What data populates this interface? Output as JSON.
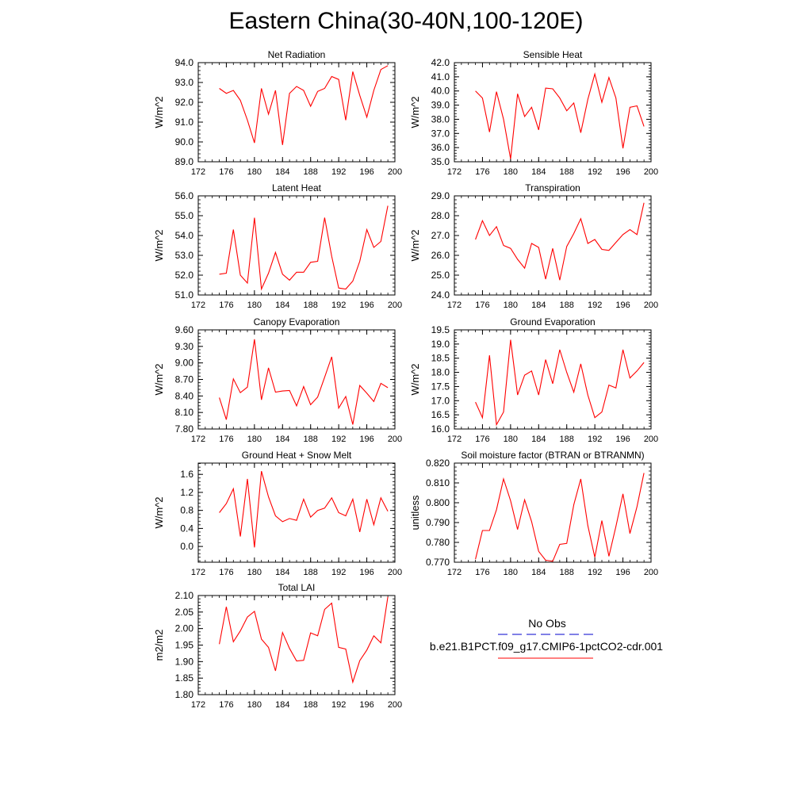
{
  "title": "Eastern China(30-40N,100-120E)",
  "colors": {
    "model": "#ff0000",
    "obs": "#0000cc"
  },
  "legend": {
    "obs_label": "No Obs",
    "model_label": "b.e21.B1PCT.f09_g17.CMIP6-1pctCO2-cdr.001"
  },
  "chart_data": [
    {
      "type": "line",
      "title": "Net Radiation",
      "ylabel": "W/m^2",
      "xlim": [
        172,
        200
      ],
      "xticks": [
        "172",
        "176",
        "180",
        "184",
        "188",
        "192",
        "196",
        "200"
      ],
      "ylim": [
        89.0,
        94.0
      ],
      "yticks": [
        "89.0",
        "90.0",
        "91.0",
        "92.0",
        "93.0",
        "94.0"
      ],
      "x": [
        175,
        176,
        177,
        178,
        179,
        180,
        181,
        182,
        183,
        184,
        185,
        186,
        187,
        188,
        189,
        190,
        191,
        192,
        193,
        194,
        195,
        196,
        197,
        198,
        199
      ],
      "series": [
        {
          "values": [
            92.7,
            92.45,
            92.6,
            92.1,
            91.1,
            89.95,
            92.7,
            91.4,
            92.6,
            89.85,
            92.45,
            92.8,
            92.6,
            91.8,
            92.55,
            92.7,
            93.3,
            93.15,
            91.1,
            93.55,
            92.35,
            91.25,
            92.6,
            93.65,
            93.85
          ]
        }
      ]
    },
    {
      "type": "line",
      "title": "Sensible Heat",
      "ylabel": "W/m^2",
      "xlim": [
        172,
        200
      ],
      "xticks": [
        "172",
        "176",
        "180",
        "184",
        "188",
        "192",
        "196",
        "200"
      ],
      "ylim": [
        35.0,
        42.0
      ],
      "yticks": [
        "35.0",
        "36.0",
        "37.0",
        "38.0",
        "39.0",
        "40.0",
        "41.0",
        "42.0"
      ],
      "x": [
        175,
        176,
        177,
        178,
        179,
        180,
        181,
        182,
        183,
        184,
        185,
        186,
        187,
        188,
        189,
        190,
        191,
        192,
        193,
        194,
        195,
        196,
        197,
        198,
        199
      ],
      "series": [
        {
          "values": [
            40.0,
            39.5,
            37.1,
            39.95,
            38.0,
            35.2,
            39.8,
            38.2,
            38.85,
            37.25,
            40.2,
            40.15,
            39.5,
            38.6,
            39.15,
            37.05,
            39.4,
            41.2,
            39.2,
            40.95,
            39.5,
            35.95,
            38.85,
            38.95,
            37.5
          ]
        }
      ]
    },
    {
      "type": "line",
      "title": "Latent Heat",
      "ylabel": "W/m^2",
      "xlim": [
        172,
        200
      ],
      "xticks": [
        "172",
        "176",
        "180",
        "184",
        "188",
        "192",
        "196",
        "200"
      ],
      "ylim": [
        51.0,
        56.0
      ],
      "yticks": [
        "51.0",
        "52.0",
        "53.0",
        "54.0",
        "55.0",
        "56.0"
      ],
      "x": [
        175,
        176,
        177,
        178,
        179,
        180,
        181,
        182,
        183,
        184,
        185,
        186,
        187,
        188,
        189,
        190,
        191,
        192,
        193,
        194,
        195,
        196,
        197,
        198,
        199
      ],
      "series": [
        {
          "values": [
            52.05,
            52.1,
            54.3,
            52.0,
            51.6,
            54.9,
            51.3,
            52.1,
            53.15,
            52.05,
            51.75,
            52.15,
            52.15,
            52.65,
            52.7,
            54.9,
            52.95,
            51.35,
            51.3,
            51.7,
            52.7,
            54.3,
            53.4,
            53.7,
            55.5
          ]
        }
      ]
    },
    {
      "type": "line",
      "title": "Transpiration",
      "ylabel": "W/m^2",
      "xlim": [
        172,
        200
      ],
      "xticks": [
        "172",
        "176",
        "180",
        "184",
        "188",
        "192",
        "196",
        "200"
      ],
      "ylim": [
        24.0,
        29.0
      ],
      "yticks": [
        "24.0",
        "25.0",
        "26.0",
        "27.0",
        "28.0",
        "29.0"
      ],
      "x": [
        175,
        176,
        177,
        178,
        179,
        180,
        181,
        182,
        183,
        184,
        185,
        186,
        187,
        188,
        189,
        190,
        191,
        192,
        193,
        194,
        195,
        196,
        197,
        198,
        199
      ],
      "series": [
        {
          "values": [
            26.8,
            27.75,
            27.0,
            27.45,
            26.5,
            26.35,
            25.8,
            25.35,
            26.6,
            26.4,
            24.8,
            26.35,
            24.75,
            26.45,
            27.1,
            27.85,
            26.6,
            26.8,
            26.3,
            26.25,
            26.65,
            27.05,
            27.3,
            27.05,
            28.65
          ]
        }
      ]
    },
    {
      "type": "line",
      "title": "Canopy Evaporation",
      "ylabel": "W/m^2",
      "xlim": [
        172,
        200
      ],
      "xticks": [
        "172",
        "176",
        "180",
        "184",
        "188",
        "192",
        "196",
        "200"
      ],
      "ylim": [
        7.8,
        9.6
      ],
      "yticks": [
        "7.80",
        "8.10",
        "8.40",
        "8.70",
        "9.00",
        "9.30",
        "9.60"
      ],
      "x": [
        175,
        176,
        177,
        178,
        179,
        180,
        181,
        182,
        183,
        184,
        185,
        186,
        187,
        188,
        189,
        190,
        191,
        192,
        193,
        194,
        195,
        196,
        197,
        198,
        199
      ],
      "series": [
        {
          "values": [
            8.37,
            7.97,
            8.71,
            8.46,
            8.56,
            9.43,
            8.33,
            8.91,
            8.47,
            8.49,
            8.5,
            8.22,
            8.57,
            8.24,
            8.38,
            8.74,
            9.11,
            8.18,
            8.39,
            7.88,
            8.59,
            8.45,
            8.3,
            8.63,
            8.55
          ]
        }
      ]
    },
    {
      "type": "line",
      "title": "Ground Evaporation",
      "ylabel": "W/m^2",
      "xlim": [
        172,
        200
      ],
      "xticks": [
        "172",
        "176",
        "180",
        "184",
        "188",
        "192",
        "196",
        "200"
      ],
      "ylim": [
        16.0,
        19.5
      ],
      "yticks": [
        "16.0",
        "16.5",
        "17.0",
        "17.5",
        "18.0",
        "18.5",
        "19.0",
        "19.5"
      ],
      "x": [
        175,
        176,
        177,
        178,
        179,
        180,
        181,
        182,
        183,
        184,
        185,
        186,
        187,
        188,
        189,
        190,
        191,
        192,
        193,
        194,
        195,
        196,
        197,
        198,
        199
      ],
      "series": [
        {
          "values": [
            16.95,
            16.4,
            18.6,
            16.15,
            16.6,
            19.15,
            17.2,
            17.9,
            18.05,
            17.2,
            18.45,
            17.6,
            18.8,
            18.0,
            17.3,
            18.3,
            17.2,
            16.4,
            16.6,
            17.55,
            17.45,
            18.8,
            17.8,
            18.05,
            18.35
          ]
        }
      ]
    },
    {
      "type": "line",
      "title": "Ground Heat + Snow Melt",
      "ylabel": "W/m^2",
      "xlim": [
        172,
        200
      ],
      "xticks": [
        "172",
        "176",
        "180",
        "184",
        "188",
        "192",
        "196",
        "200"
      ],
      "ylim": [
        -0.35,
        1.85
      ],
      "yticks": [
        "0.0",
        "0.4",
        "0.8",
        "1.2",
        "1.6"
      ],
      "ytick_values": [
        0.0,
        0.4,
        0.8,
        1.2,
        1.6
      ],
      "x": [
        175,
        176,
        177,
        178,
        179,
        180,
        181,
        182,
        183,
        184,
        185,
        186,
        187,
        188,
        189,
        190,
        191,
        192,
        193,
        194,
        195,
        196,
        197,
        198,
        199
      ],
      "series": [
        {
          "values": [
            0.75,
            0.95,
            1.28,
            0.22,
            1.5,
            -0.02,
            1.67,
            1.1,
            0.68,
            0.55,
            0.62,
            0.58,
            1.05,
            0.65,
            0.8,
            0.85,
            1.08,
            0.75,
            0.68,
            1.05,
            0.32,
            1.05,
            0.48,
            1.08,
            0.78
          ]
        }
      ]
    },
    {
      "type": "line",
      "title": "Soil moisture factor (BTRAN or BTRANMN)",
      "ylabel": "unitless",
      "xlim": [
        172,
        200
      ],
      "xticks": [
        "172",
        "176",
        "180",
        "184",
        "188",
        "192",
        "196",
        "200"
      ],
      "ylim": [
        0.77,
        0.82
      ],
      "yticks": [
        "0.770",
        "0.780",
        "0.790",
        "0.800",
        "0.810",
        "0.820"
      ],
      "x": [
        175,
        176,
        177,
        178,
        179,
        180,
        181,
        182,
        183,
        184,
        185,
        186,
        187,
        188,
        189,
        190,
        191,
        192,
        193,
        194,
        195,
        196,
        197,
        198,
        199
      ],
      "series": [
        {
          "values": [
            0.7715,
            0.786,
            0.786,
            0.7965,
            0.812,
            0.801,
            0.7865,
            0.8015,
            0.7905,
            0.7755,
            0.771,
            0.7705,
            0.779,
            0.7795,
            0.799,
            0.812,
            0.7885,
            0.7725,
            0.791,
            0.773,
            0.788,
            0.8045,
            0.7845,
            0.798,
            0.815
          ]
        }
      ]
    },
    {
      "type": "line",
      "title": "Total LAI",
      "ylabel": "m2/m2",
      "xlim": [
        172,
        200
      ],
      "xticks": [
        "172",
        "176",
        "180",
        "184",
        "188",
        "192",
        "196",
        "200"
      ],
      "ylim": [
        1.8,
        2.1
      ],
      "yticks": [
        "1.80",
        "1.85",
        "1.90",
        "1.95",
        "2.00",
        "2.05",
        "2.10"
      ],
      "x": [
        175,
        176,
        177,
        178,
        179,
        180,
        181,
        182,
        183,
        184,
        185,
        186,
        187,
        188,
        189,
        190,
        191,
        192,
        193,
        194,
        195,
        196,
        197,
        198,
        199
      ],
      "series": [
        {
          "values": [
            1.953,
            2.066,
            1.96,
            1.993,
            2.035,
            2.052,
            1.968,
            1.943,
            1.872,
            1.988,
            1.94,
            1.902,
            1.904,
            1.987,
            1.978,
            2.058,
            2.077,
            1.943,
            1.938,
            1.838,
            1.903,
            1.935,
            1.978,
            1.957,
            2.096
          ]
        }
      ]
    }
  ]
}
